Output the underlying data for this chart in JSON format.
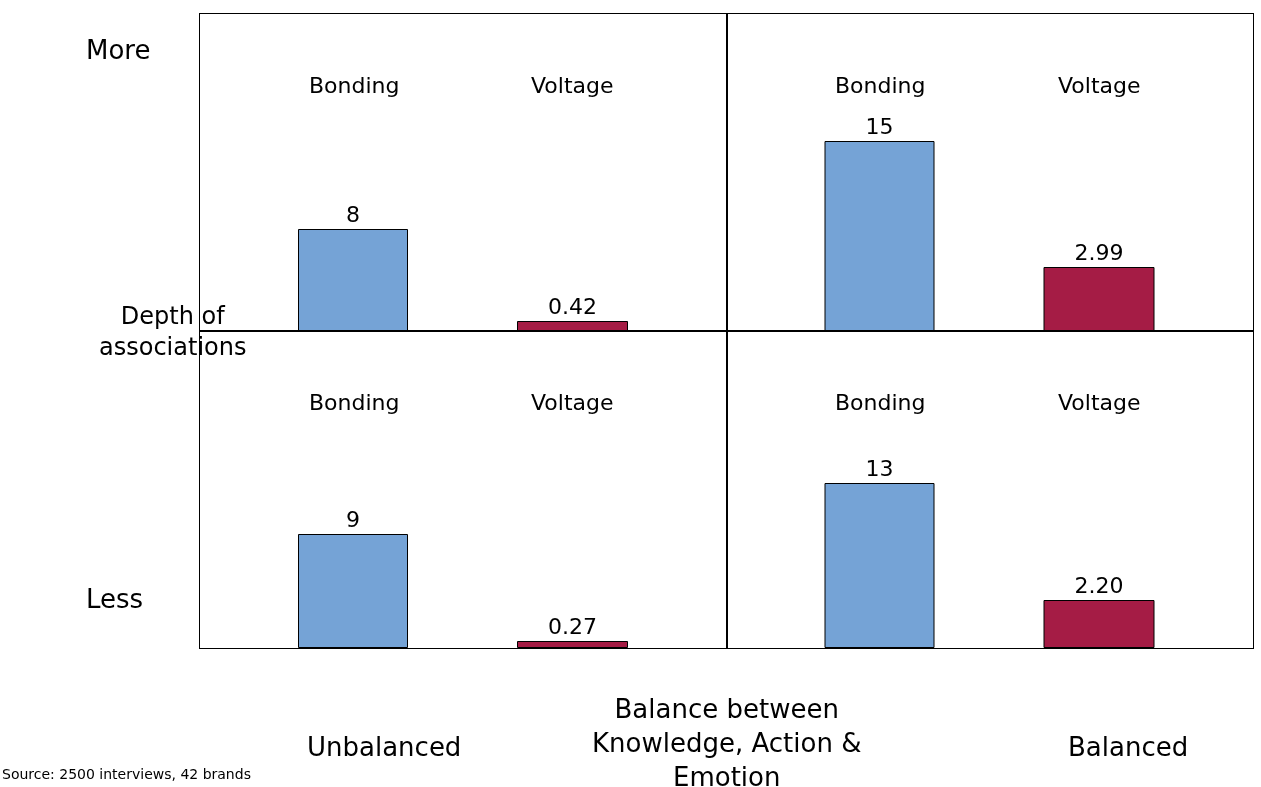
{
  "chart_data": [
    {
      "type": "bar",
      "categories": [
        "Bonding",
        "Voltage"
      ],
      "ylabel": "Depth of associations",
      "xlabel": "Balance between Knowledge, Action & Emotion",
      "annotations": [
        "More",
        "Less",
        "Unbalanced",
        "Balanced",
        "Source: 2500 interviews, 42 brands"
      ],
      "series": [
        {
          "color": "#75a3d6",
          "values": [
            8,
            null
          ],
          "value_labels": [
            "8",
            null
          ]
        },
        {
          "color": "#a51c45",
          "axis": "y2",
          "values": [
            null,
            0.42
          ],
          "value_labels": [
            null,
            "0.42"
          ]
        }
      ]
    },
    {
      "type": "bar",
      "categories": [
        "Bonding",
        "Voltage"
      ],
      "series": [
        {
          "color": "#75a3d6",
          "values": [
            15,
            null
          ],
          "value_labels": [
            "15",
            null
          ]
        },
        {
          "color": "#a51c45",
          "axis": "y2",
          "values": [
            null,
            2.99
          ],
          "value_labels": [
            null,
            "2.99"
          ]
        }
      ]
    },
    {
      "type": "bar",
      "categories": [
        "Bonding",
        "Voltage"
      ],
      "series": [
        {
          "color": "#75a3d6",
          "values": [
            9,
            null
          ],
          "value_labels": [
            "9",
            null
          ]
        },
        {
          "color": "#a51c45",
          "axis": "y2",
          "values": [
            null,
            0.27
          ],
          "value_labels": [
            null,
            "0.27"
          ]
        }
      ]
    },
    {
      "type": "bar",
      "categories": [
        "Bonding",
        "Voltage"
      ],
      "series": [
        {
          "color": "#75a3d6",
          "values": [
            13,
            null
          ],
          "value_labels": [
            "13",
            null
          ]
        },
        {
          "color": "#a51c45",
          "axis": "y2",
          "values": [
            null,
            2.2
          ],
          "value_labels": [
            null,
            "2.20"
          ]
        }
      ]
    }
  ]
}
